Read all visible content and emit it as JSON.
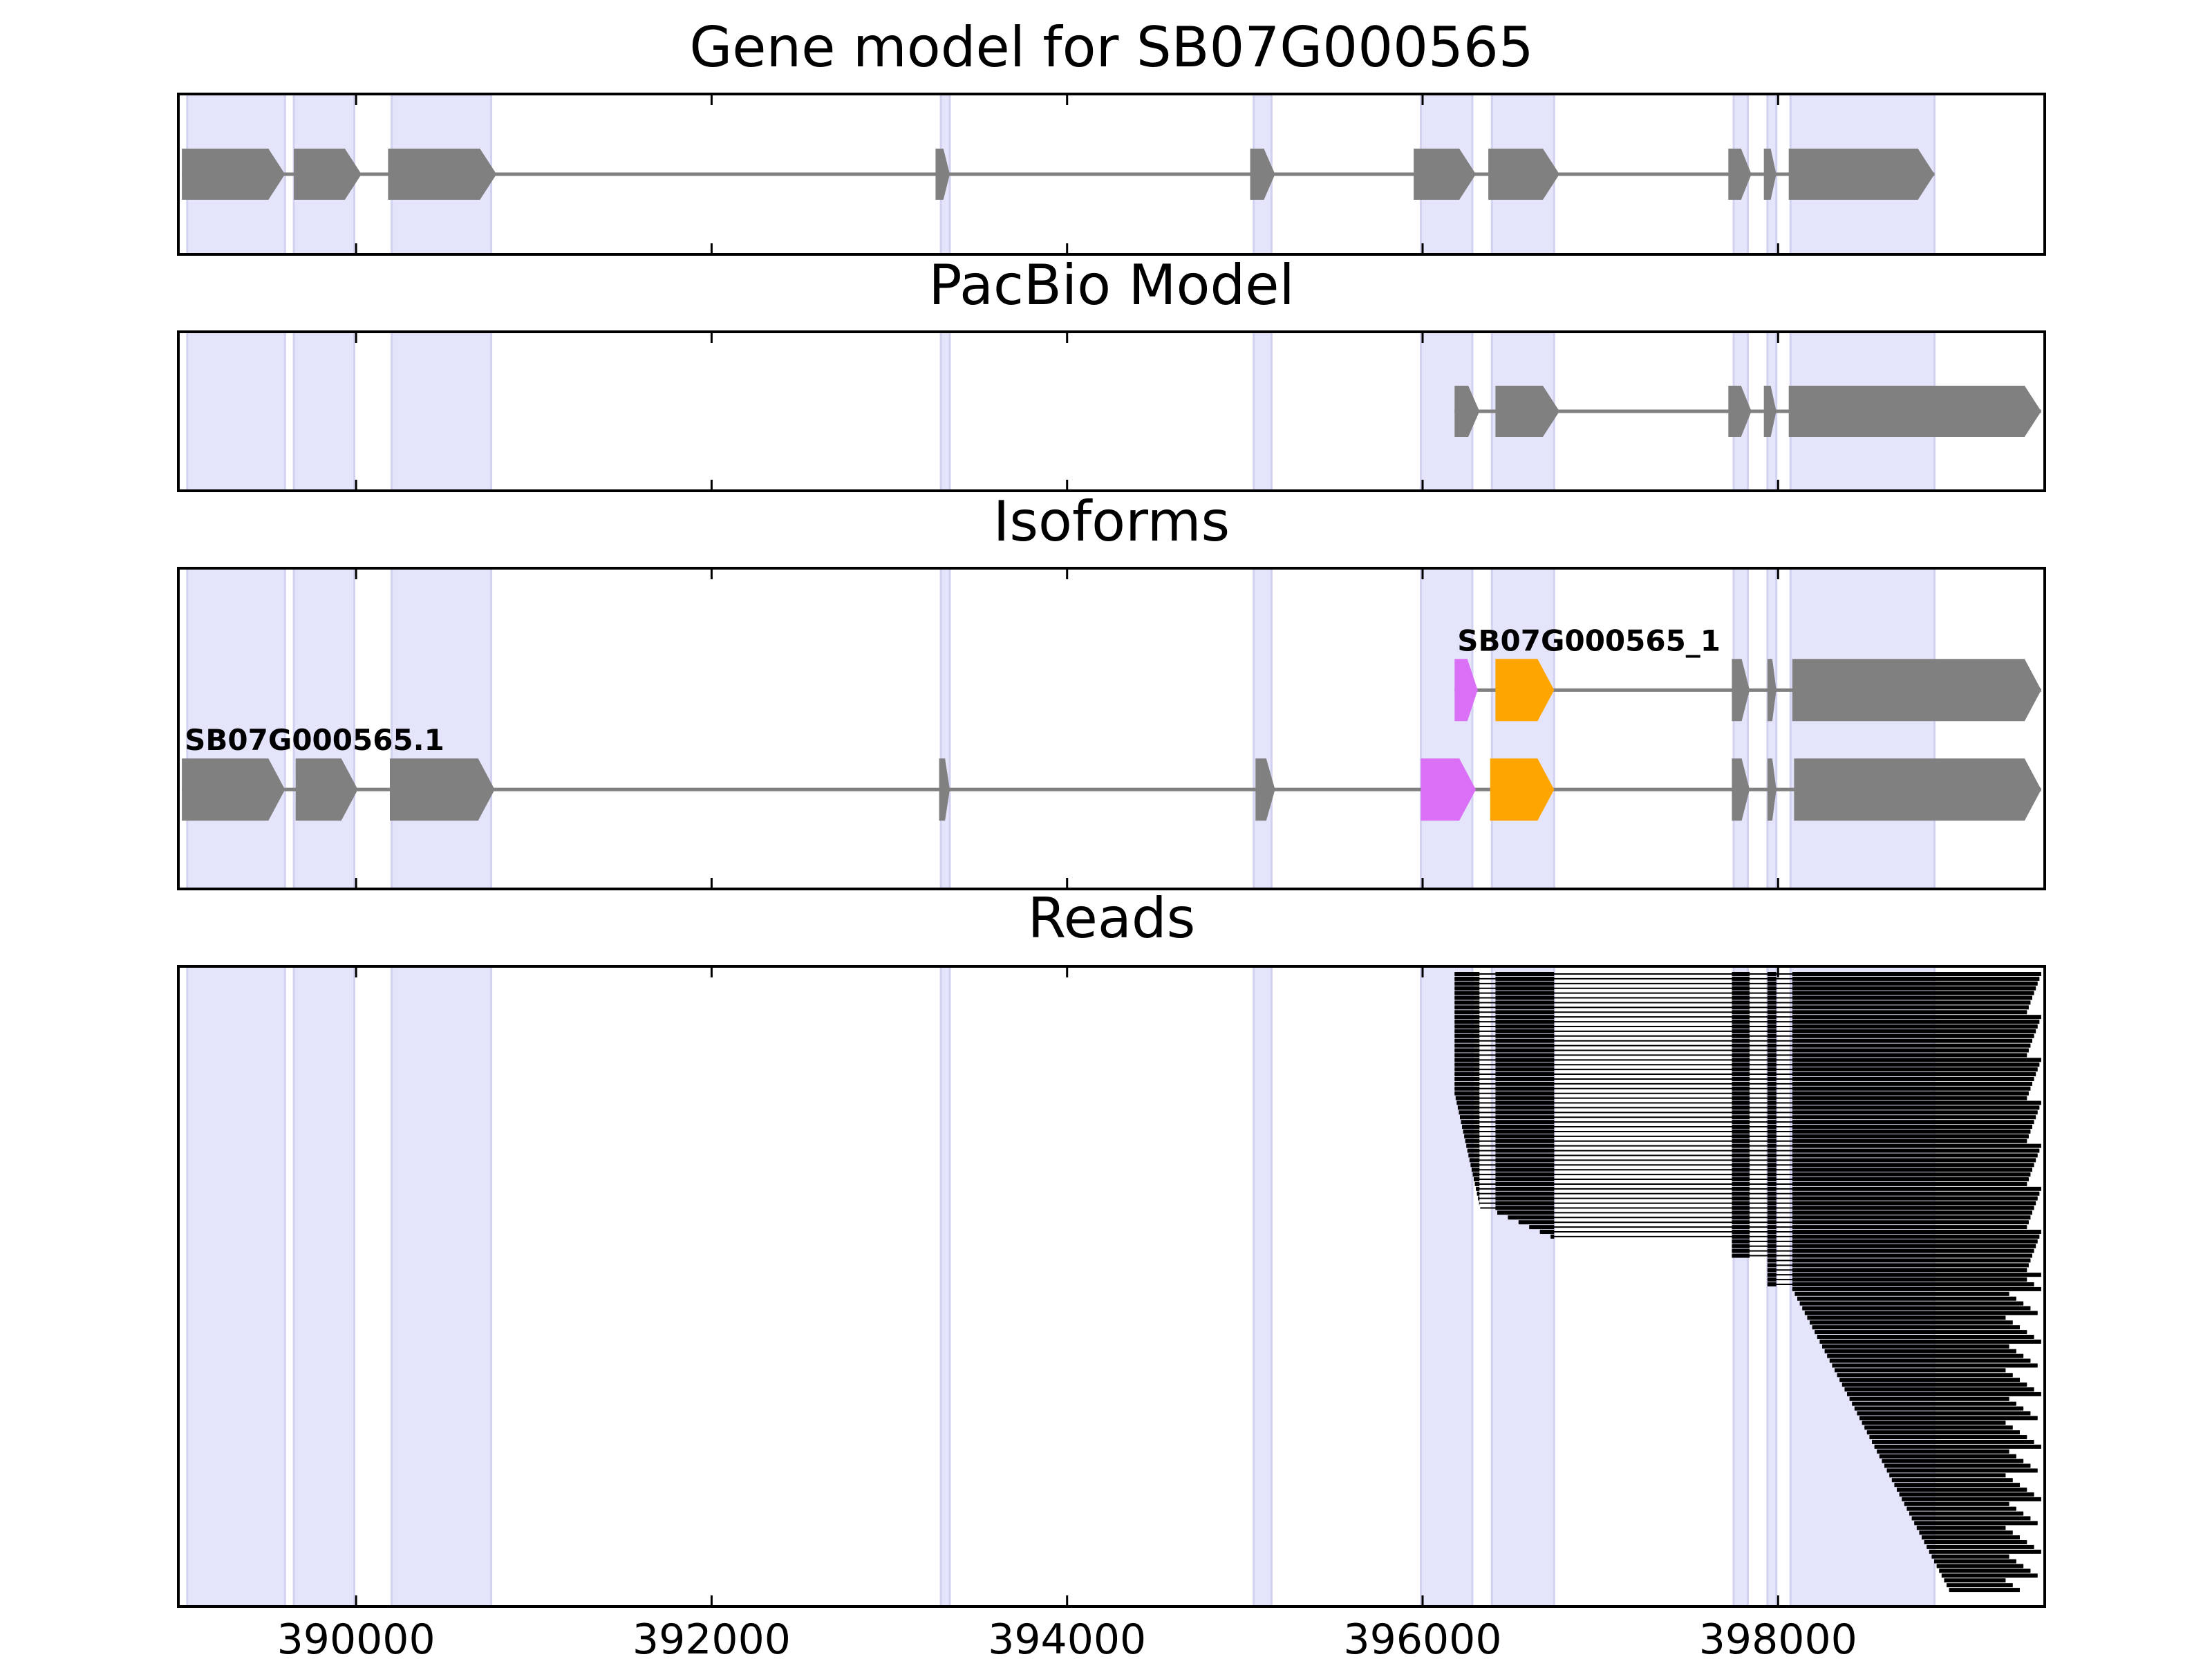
{
  "chart_data": {
    "type": "gene_model_track",
    "xlim": [
      389000,
      399500
    ],
    "x_ticks": [
      {
        "value": 390000,
        "label": "390000"
      },
      {
        "value": 392000,
        "label": "392000"
      },
      {
        "value": 394000,
        "label": "394000"
      },
      {
        "value": 396000,
        "label": "396000"
      },
      {
        "value": 398000,
        "label": "398000"
      }
    ],
    "highlight_regions": [
      [
        389050,
        389600
      ],
      [
        389650,
        389990
      ],
      [
        390200,
        390760
      ],
      [
        393290,
        393340
      ],
      [
        395050,
        395150
      ],
      [
        395990,
        396280
      ],
      [
        396390,
        396740
      ],
      [
        397750,
        397830
      ],
      [
        397940,
        397990
      ],
      [
        398070,
        398880
      ]
    ],
    "panels": [
      {
        "title": "Gene model for SB07G000565",
        "tracks": [
          {
            "row": 0.5,
            "label": "",
            "exons": [
              {
                "start": 389020,
                "end": 389600,
                "color": "#808080"
              },
              {
                "start": 389650,
                "end": 390030,
                "color": "#808080"
              },
              {
                "start": 390180,
                "end": 390790,
                "color": "#808080"
              },
              {
                "start": 393260,
                "end": 393340,
                "color": "#808080"
              },
              {
                "start": 395030,
                "end": 395170,
                "color": "#808080"
              },
              {
                "start": 395950,
                "end": 396300,
                "color": "#808080"
              },
              {
                "start": 396370,
                "end": 396770,
                "color": "#808080"
              },
              {
                "start": 397720,
                "end": 397850,
                "color": "#808080"
              },
              {
                "start": 397920,
                "end": 397990,
                "color": "#808080"
              },
              {
                "start": 398060,
                "end": 398880,
                "color": "#808080"
              }
            ]
          }
        ]
      },
      {
        "title": "PacBio Model",
        "tracks": [
          {
            "row": 0.5,
            "label": "",
            "exons": [
              {
                "start": 396180,
                "end": 396320,
                "color": "#808080"
              },
              {
                "start": 396410,
                "end": 396770,
                "color": "#808080"
              },
              {
                "start": 397720,
                "end": 397850,
                "color": "#808080"
              },
              {
                "start": 397920,
                "end": 397990,
                "color": "#808080"
              },
              {
                "start": 398060,
                "end": 399480,
                "color": "#808080"
              }
            ]
          }
        ]
      },
      {
        "title": "Isoforms",
        "tracks": [
          {
            "row": 0.38,
            "label": "SB07G000565_1",
            "exons": [
              {
                "start": 396180,
                "end": 396310,
                "color": "#DA70F5"
              },
              {
                "start": 396410,
                "end": 396740,
                "color": "#FFA500"
              },
              {
                "start": 397740,
                "end": 397840,
                "color": "#808080"
              },
              {
                "start": 397940,
                "end": 397990,
                "color": "#808080"
              },
              {
                "start": 398080,
                "end": 399480,
                "color": "#808080"
              }
            ]
          },
          {
            "row": 0.69,
            "label": "SB07G000565.1",
            "exons": [
              {
                "start": 389020,
                "end": 389600,
                "color": "#808080"
              },
              {
                "start": 389660,
                "end": 390010,
                "color": "#808080"
              },
              {
                "start": 390190,
                "end": 390780,
                "color": "#808080"
              },
              {
                "start": 393280,
                "end": 393340,
                "color": "#808080"
              },
              {
                "start": 395060,
                "end": 395170,
                "color": "#808080"
              },
              {
                "start": 395990,
                "end": 396300,
                "color": "#DA70F5"
              },
              {
                "start": 396380,
                "end": 396740,
                "color": "#FFA500"
              },
              {
                "start": 397740,
                "end": 397840,
                "color": "#808080"
              },
              {
                "start": 397940,
                "end": 397990,
                "color": "#808080"
              },
              {
                "start": 398090,
                "end": 399480,
                "color": "#808080"
              }
            ]
          }
        ]
      },
      {
        "title": "Reads",
        "read_count": 130,
        "read_color": "#000000"
      }
    ]
  }
}
